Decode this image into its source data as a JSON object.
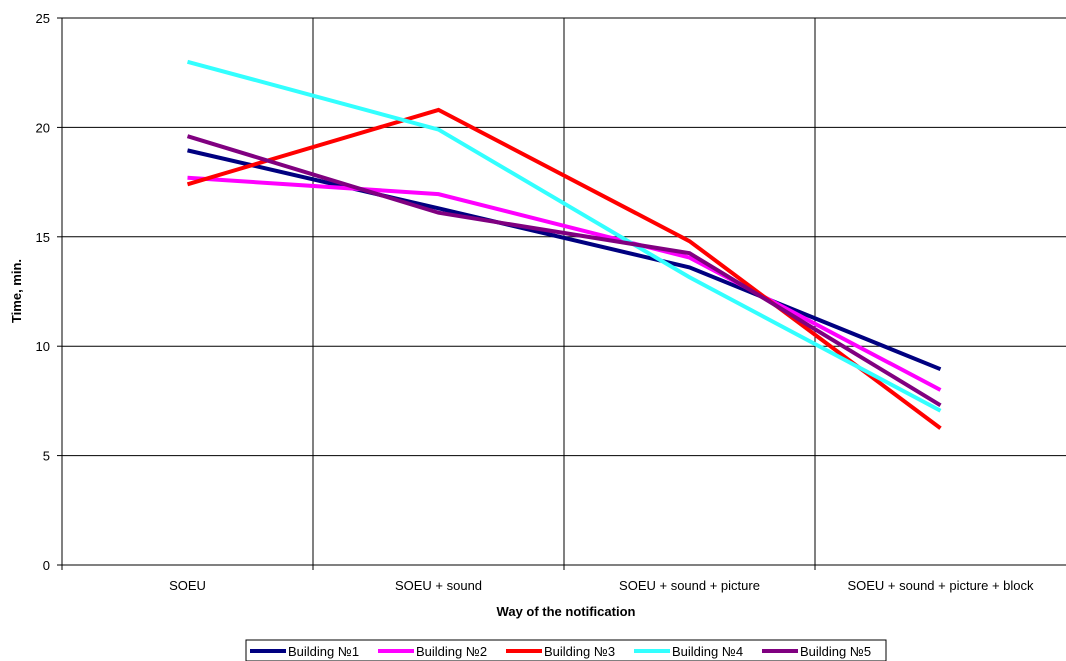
{
  "chart_data": {
    "type": "line",
    "title": "",
    "xlabel": "Way of the notification",
    "ylabel": "Time, min.",
    "categories": [
      "SOEU",
      "SOEU + sound",
      "SOEU + sound + picture",
      "SOEU + sound + picture + block"
    ],
    "yticks": [
      "0",
      "5",
      "10",
      "15",
      "20",
      "25"
    ],
    "ylim": [
      0,
      25
    ],
    "grid": true,
    "legend_position": "bottom",
    "series": [
      {
        "name": "Building №1",
        "color": "#000080",
        "values": [
          18.95,
          16.3,
          13.6,
          8.95
        ]
      },
      {
        "name": "Building №2",
        "color": "#ff00ff",
        "values": [
          17.7,
          16.95,
          14.05,
          8.0
        ]
      },
      {
        "name": "Building №3",
        "color": "#ff0000",
        "values": [
          17.4,
          20.8,
          14.8,
          6.25
        ]
      },
      {
        "name": "Building №4",
        "color": "#33ffff",
        "values": [
          23.0,
          19.9,
          13.15,
          7.05
        ]
      },
      {
        "name": "Building №5",
        "color": "#800080",
        "values": [
          19.6,
          16.1,
          14.25,
          7.3
        ]
      }
    ]
  }
}
